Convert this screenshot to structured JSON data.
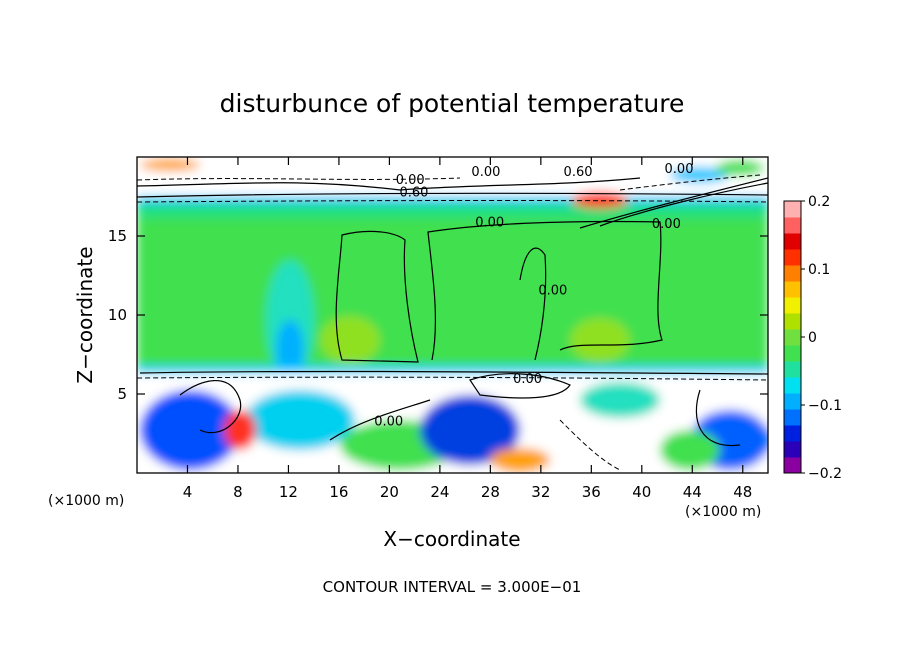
{
  "chart_data": {
    "type": "heatmap",
    "title": "disturbunce of potential temperature",
    "xlabel": "X−coordinate",
    "ylabel": "Z−coordinate",
    "x_unit": "(×1000 m)",
    "y_unit": "(×1000 m)",
    "xlim": [
      0,
      50
    ],
    "ylim": [
      0,
      20
    ],
    "xticks": [
      4,
      8,
      12,
      16,
      20,
      24,
      28,
      32,
      36,
      40,
      44,
      48
    ],
    "yticks": [
      5,
      10,
      15
    ],
    "colorbar": {
      "range": [
        -0.2,
        0.2
      ],
      "tick_values": [
        0.2,
        0.1,
        0,
        -0.1,
        -0.2
      ],
      "tick_labels": [
        "0.2",
        "0.1",
        "0",
        "−0.1",
        "−0.2"
      ],
      "colors": [
        "#8a00a0",
        "#2a00b8",
        "#0020e0",
        "#0070ff",
        "#00b0ff",
        "#00e0f0",
        "#20e0a0",
        "#40e050",
        "#70e040",
        "#b0e000",
        "#f0f000",
        "#ffc000",
        "#ff8000",
        "#ff3000",
        "#e00000",
        "#ff6060",
        "#ffb0b0"
      ]
    },
    "contour_labels": [
      {
        "text": "0.00",
        "x": 20.5,
        "y": 18.3
      },
      {
        "text": "0.00",
        "x": 26.5,
        "y": 18.8
      },
      {
        "text": "0.00",
        "x": 41.8,
        "y": 19.0
      },
      {
        "text": "0.60",
        "x": 20.8,
        "y": 17.5
      },
      {
        "text": "0.60",
        "x": 33.8,
        "y": 18.8
      },
      {
        "text": "0.00",
        "x": 26.8,
        "y": 15.6
      },
      {
        "text": "0.00",
        "x": 40.8,
        "y": 15.5
      },
      {
        "text": "0.00",
        "x": 31.8,
        "y": 11.3
      },
      {
        "text": "0.00",
        "x": 29.8,
        "y": 5.7
      },
      {
        "text": "0.00",
        "x": 18.8,
        "y": 3.0
      }
    ],
    "annotation": "CONTOUR INTERVAL = 3.000E−01",
    "grid": false,
    "legend": "right colorbar"
  }
}
